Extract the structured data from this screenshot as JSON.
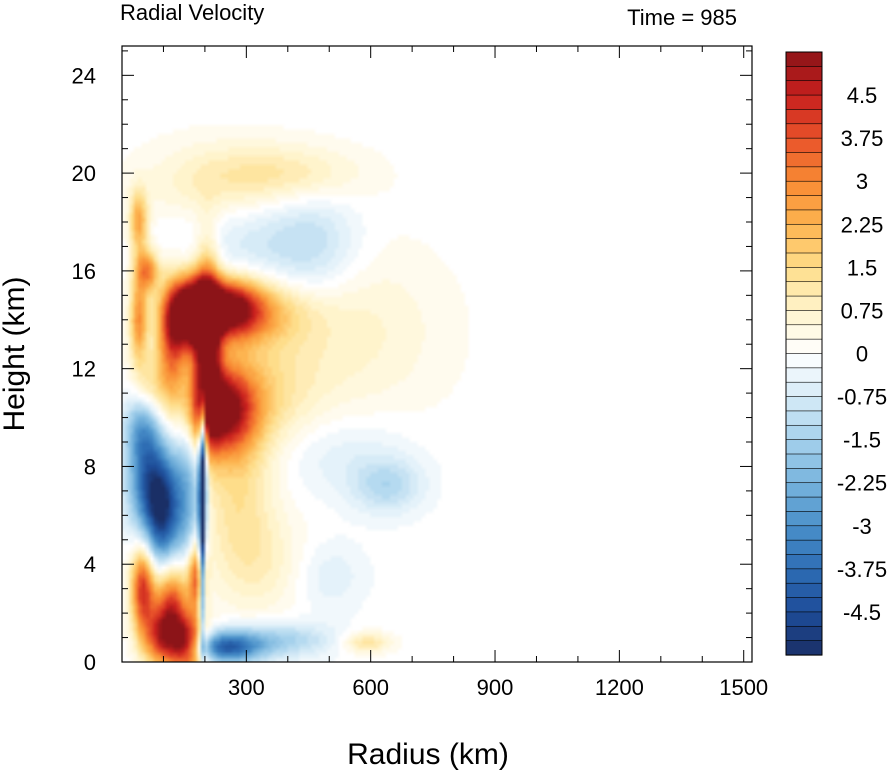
{
  "chart_data": {
    "type": "heatmap",
    "title": "Radial Velocity",
    "subtitle": "Time = 985",
    "xlabel": "Radius (km)",
    "ylabel": "Height (km)",
    "xlim": [
      0,
      1520
    ],
    "ylim": [
      0,
      25.2
    ],
    "x_ticks": [
      300,
      600,
      900,
      1200,
      1500
    ],
    "y_ticks": [
      0,
      4,
      8,
      12,
      16,
      20,
      24
    ],
    "colorbar": {
      "min": -5.25,
      "max": 5.25,
      "step": 0.25,
      "labels": [
        "4.5",
        "3.75",
        "3",
        "2.25",
        "1.5",
        "0.75",
        "0",
        "-0.75",
        "-1.5",
        "-2.25",
        "-3",
        "-3.75",
        "-4.5"
      ],
      "label_values": [
        4.5,
        3.75,
        3,
        2.25,
        1.5,
        0.75,
        0,
        -0.75,
        -1.5,
        -2.25,
        -3,
        -3.75,
        -4.5
      ],
      "color_stops": [
        [
          -5.25,
          "#1a2f66"
        ],
        [
          -4.5,
          "#1e4d99"
        ],
        [
          -3.75,
          "#2e6db4"
        ],
        [
          -3.0,
          "#4a90c9"
        ],
        [
          -2.25,
          "#78b4dd"
        ],
        [
          -1.5,
          "#a5d1ec"
        ],
        [
          -0.75,
          "#d6ebf7"
        ],
        [
          0,
          "#ffffff"
        ],
        [
          0.75,
          "#fff4cc"
        ],
        [
          1.5,
          "#fedd8a"
        ],
        [
          2.25,
          "#fdb450"
        ],
        [
          3.0,
          "#f88a33"
        ],
        [
          3.75,
          "#e8522a"
        ],
        [
          4.5,
          "#c8201e"
        ],
        [
          5.25,
          "#8c1418"
        ]
      ]
    },
    "features": [
      {
        "r": 160,
        "z": 14.3,
        "v": 5.2,
        "sr": 35,
        "sz": 1.0
      },
      {
        "r": 205,
        "z": 13.0,
        "v": 5.2,
        "sr": 22,
        "sz": 2.4
      },
      {
        "r": 245,
        "z": 14.5,
        "v": 5.0,
        "sr": 60,
        "sz": 0.8
      },
      {
        "r": 240,
        "z": 10.3,
        "v": 4.8,
        "sr": 55,
        "sz": 1.2
      },
      {
        "r": 120,
        "z": 13.0,
        "v": 3.0,
        "sr": 25,
        "sz": 1.6
      },
      {
        "r": 300,
        "z": 14.3,
        "v": 2.0,
        "sr": 100,
        "sz": 0.9
      },
      {
        "r": 300,
        "z": 11.0,
        "v": 1.5,
        "sr": 110,
        "sz": 1.8
      },
      {
        "r": 560,
        "z": 13.5,
        "v": 0.7,
        "sr": 150,
        "sz": 2.5
      },
      {
        "r": 250,
        "z": 19.5,
        "v": 1.1,
        "sr": 130,
        "sz": 1.2
      },
      {
        "r": 420,
        "z": 20.0,
        "v": 0.8,
        "sr": 120,
        "sz": 0.8
      },
      {
        "r": 40,
        "z": 18.0,
        "v": 2.5,
        "sr": 15,
        "sz": 0.9
      },
      {
        "r": 60,
        "z": 16.0,
        "v": 3.0,
        "sr": 20,
        "sz": 0.6
      },
      {
        "r": 40,
        "z": 14.0,
        "v": 2.8,
        "sr": 15,
        "sz": 1.2
      },
      {
        "r": 60,
        "z": 11.0,
        "v": 2.0,
        "sr": 30,
        "sz": 1.0
      },
      {
        "r": 75,
        "z": 7.2,
        "v": -4.0,
        "sr": 40,
        "sz": 1.4
      },
      {
        "r": 50,
        "z": 9.8,
        "v": -3.0,
        "sr": 30,
        "sz": 1.2
      },
      {
        "r": 100,
        "z": 5.5,
        "v": -3.3,
        "sr": 30,
        "sz": 1.5
      },
      {
        "r": 160,
        "z": 7.0,
        "v": -2.0,
        "sr": 25,
        "sz": 2.5
      },
      {
        "r": 193,
        "z": 5.0,
        "v": -5.2,
        "sr": 5,
        "sz": 3.0
      },
      {
        "r": 195,
        "z": 8.2,
        "v": -3.8,
        "sr": 7,
        "sz": 2.0
      },
      {
        "r": 50,
        "z": 3.0,
        "v": 4.2,
        "sr": 20,
        "sz": 1.2
      },
      {
        "r": 120,
        "z": 2.3,
        "v": 4.2,
        "sr": 30,
        "sz": 1.4
      },
      {
        "r": 160,
        "z": 0.7,
        "v": 4.5,
        "sr": 30,
        "sz": 0.8
      },
      {
        "r": 90,
        "z": 1.0,
        "v": 3.0,
        "sr": 30,
        "sz": 0.8
      },
      {
        "r": 180,
        "z": 3.5,
        "v": 3.5,
        "sr": 15,
        "sz": 1.0
      },
      {
        "r": 250,
        "z": 0.6,
        "v": -3.8,
        "sr": 60,
        "sz": 0.45
      },
      {
        "r": 380,
        "z": 0.9,
        "v": -1.5,
        "sr": 90,
        "sz": 0.5
      },
      {
        "r": 590,
        "z": 0.8,
        "v": 1.3,
        "sr": 40,
        "sz": 0.3
      },
      {
        "r": 640,
        "z": 7.2,
        "v": -1.2,
        "sr": 60,
        "sz": 0.8
      },
      {
        "r": 520,
        "z": 8.5,
        "v": -0.6,
        "sr": 120,
        "sz": 1.2
      },
      {
        "r": 460,
        "z": 17.0,
        "v": -1.0,
        "sr": 80,
        "sz": 1.5
      },
      {
        "r": 300,
        "z": 17.5,
        "v": -0.8,
        "sr": 120,
        "sz": 1.5
      },
      {
        "r": 280,
        "z": 7.0,
        "v": 1.2,
        "sr": 60,
        "sz": 2.0
      },
      {
        "r": 330,
        "z": 4.0,
        "v": 0.8,
        "sr": 80,
        "sz": 1.5
      },
      {
        "r": 500,
        "z": 3.5,
        "v": -0.6,
        "sr": 60,
        "sz": 1.0
      }
    ]
  }
}
